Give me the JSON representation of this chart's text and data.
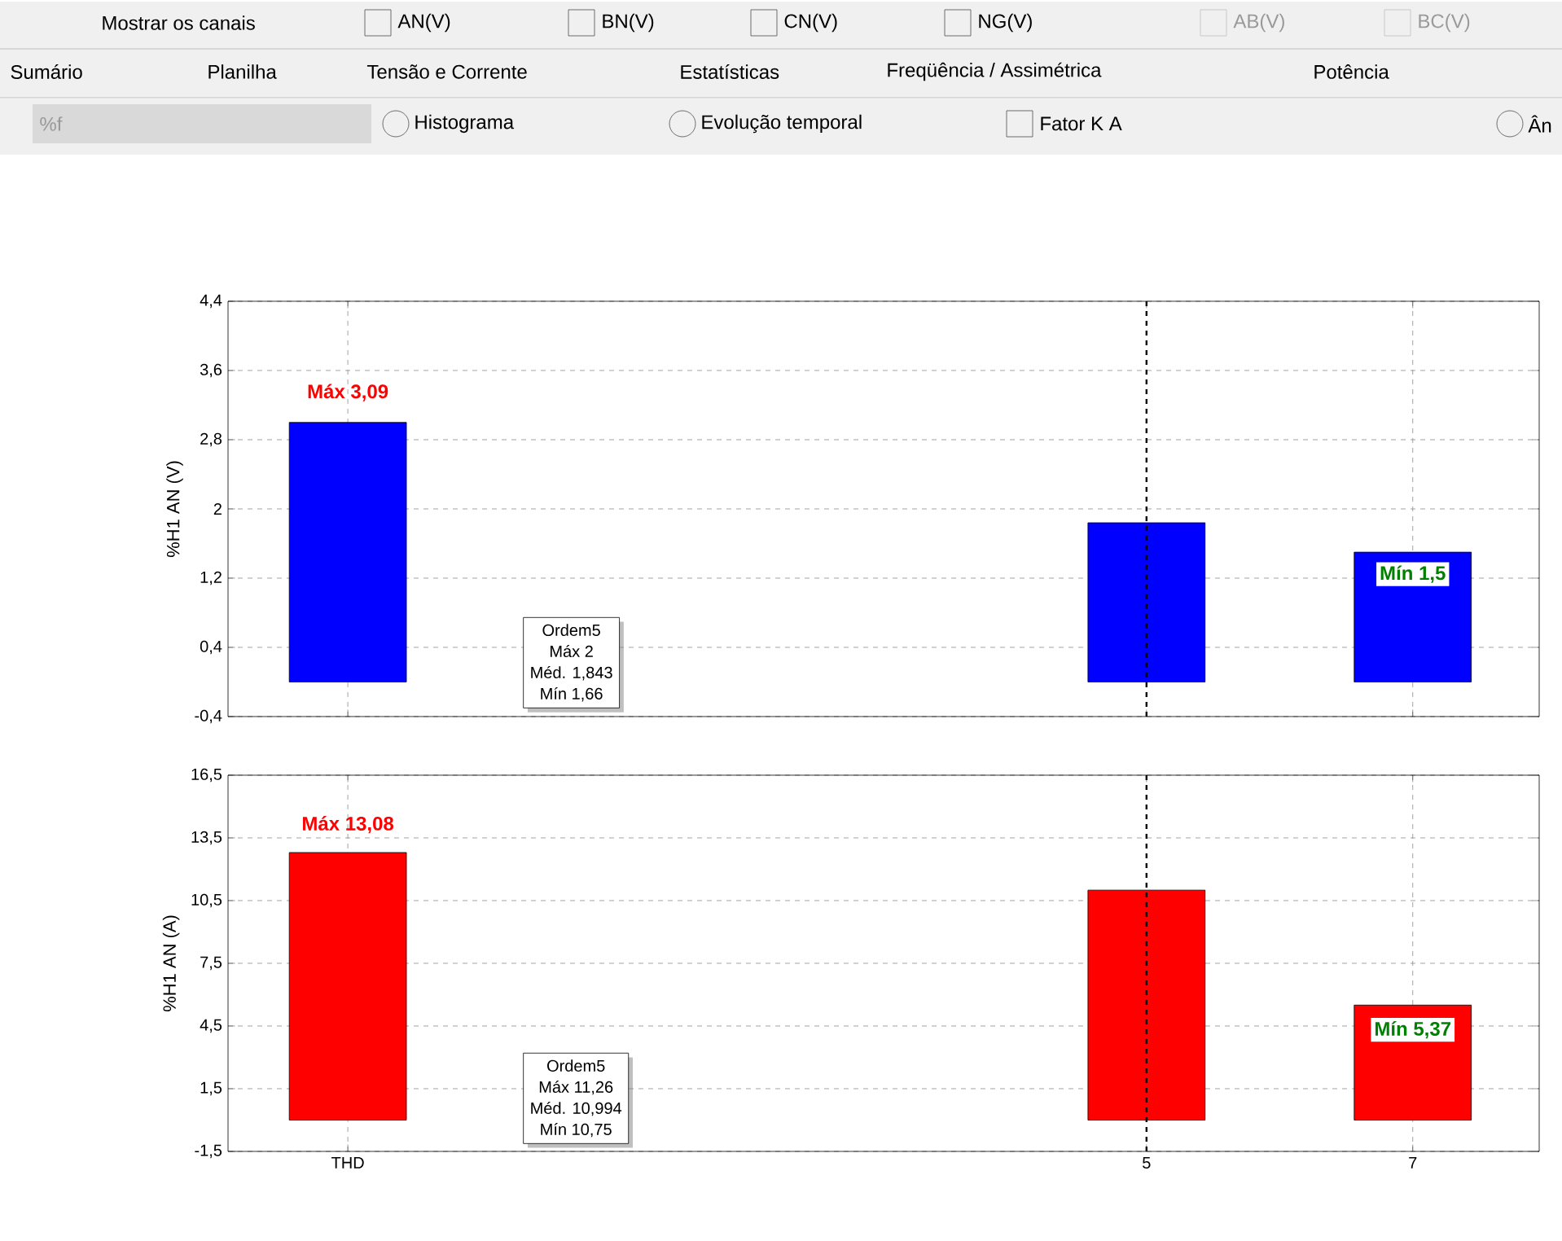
{
  "chart_data": [
    {
      "type": "other",
      "annotations": [
        "Mostrar os canais",
        "AN(V)",
        "BN(V)",
        "CN(V)",
        "NG(V)",
        "AB(V)",
        "BC(V)",
        "Sumário",
        "Planilha",
        "Tensão e Corrente",
        "Estatísticas",
        "Freqüência / Assimétrica",
        "Potência",
        "%f",
        "Histograma",
        "Evolução temporal",
        "Fator K A",
        "Ân"
      ]
    },
    {
      "type": "bar",
      "ylabel": "%H1 AN (V)",
      "categories": [
        "THD",
        null,
        null,
        null,
        null,
        null,
        "5",
        null,
        "7"
      ],
      "values": [
        3.0,
        null,
        null,
        null,
        null,
        null,
        1.84,
        null,
        1.5
      ],
      "color": "#0000ff",
      "ylim": [
        -0.4,
        4.4
      ],
      "yticks": [
        {
          "value": -0.4,
          "label": "-0,4"
        },
        {
          "value": 0.4,
          "label": "0,4"
        },
        {
          "value": 1.2,
          "label": "1,2"
        },
        2,
        {
          "value": 2.8,
          "label": "2,8"
        },
        {
          "value": 3.6,
          "label": "3,6"
        },
        {
          "value": 4.4,
          "label": "4,4"
        }
      ],
      "grid": true,
      "tick_labels": "y",
      "ref_lines": [
        {
          "axis": "x",
          "value": "5",
          "color": "#000000",
          "line_style": "dashed"
        }
      ],
      "annotations": [
        {
          "text": "Máx 3,09",
          "x": "THD",
          "y": 3.09
        },
        {
          "text": "Mín 1,5",
          "x": "7",
          "y": 1.5
        },
        "Ordem5",
        "Máx 2",
        "Méd. 1,843",
        "Mín 1,66"
      ]
    },
    {
      "type": "bar",
      "ylabel": "%H1 AN (A)",
      "categories": [
        "THD",
        null,
        null,
        null,
        null,
        null,
        "5",
        null,
        "7"
      ],
      "values": [
        12.8,
        null,
        null,
        null,
        null,
        null,
        11.0,
        null,
        5.5
      ],
      "color": "#ff0000",
      "ylim": [
        -1.5,
        16.5
      ],
      "yticks": [
        {
          "value": -1.5,
          "label": "-1,5"
        },
        {
          "value": 1.5,
          "label": "1,5"
        },
        {
          "value": 4.5,
          "label": "4,5"
        },
        {
          "value": 7.5,
          "label": "7,5"
        },
        {
          "value": 10.5,
          "label": "10,5"
        },
        {
          "value": 13.5,
          "label": "13,5"
        },
        {
          "value": 16.5,
          "label": "16,5"
        }
      ],
      "grid": true,
      "ref_lines": [
        {
          "axis": "x",
          "value": "5",
          "color": "#000000",
          "line_style": "dashed"
        }
      ],
      "annotations": [
        {
          "text": "Máx 13,08",
          "x": "THD",
          "y": 13.08
        },
        {
          "text": "Mín 5,37",
          "x": "7",
          "y": 5.37
        },
        "Ordem5",
        "Máx 11,26",
        "Méd. 10,994",
        "Mín 10,75"
      ]
    }
  ]
}
